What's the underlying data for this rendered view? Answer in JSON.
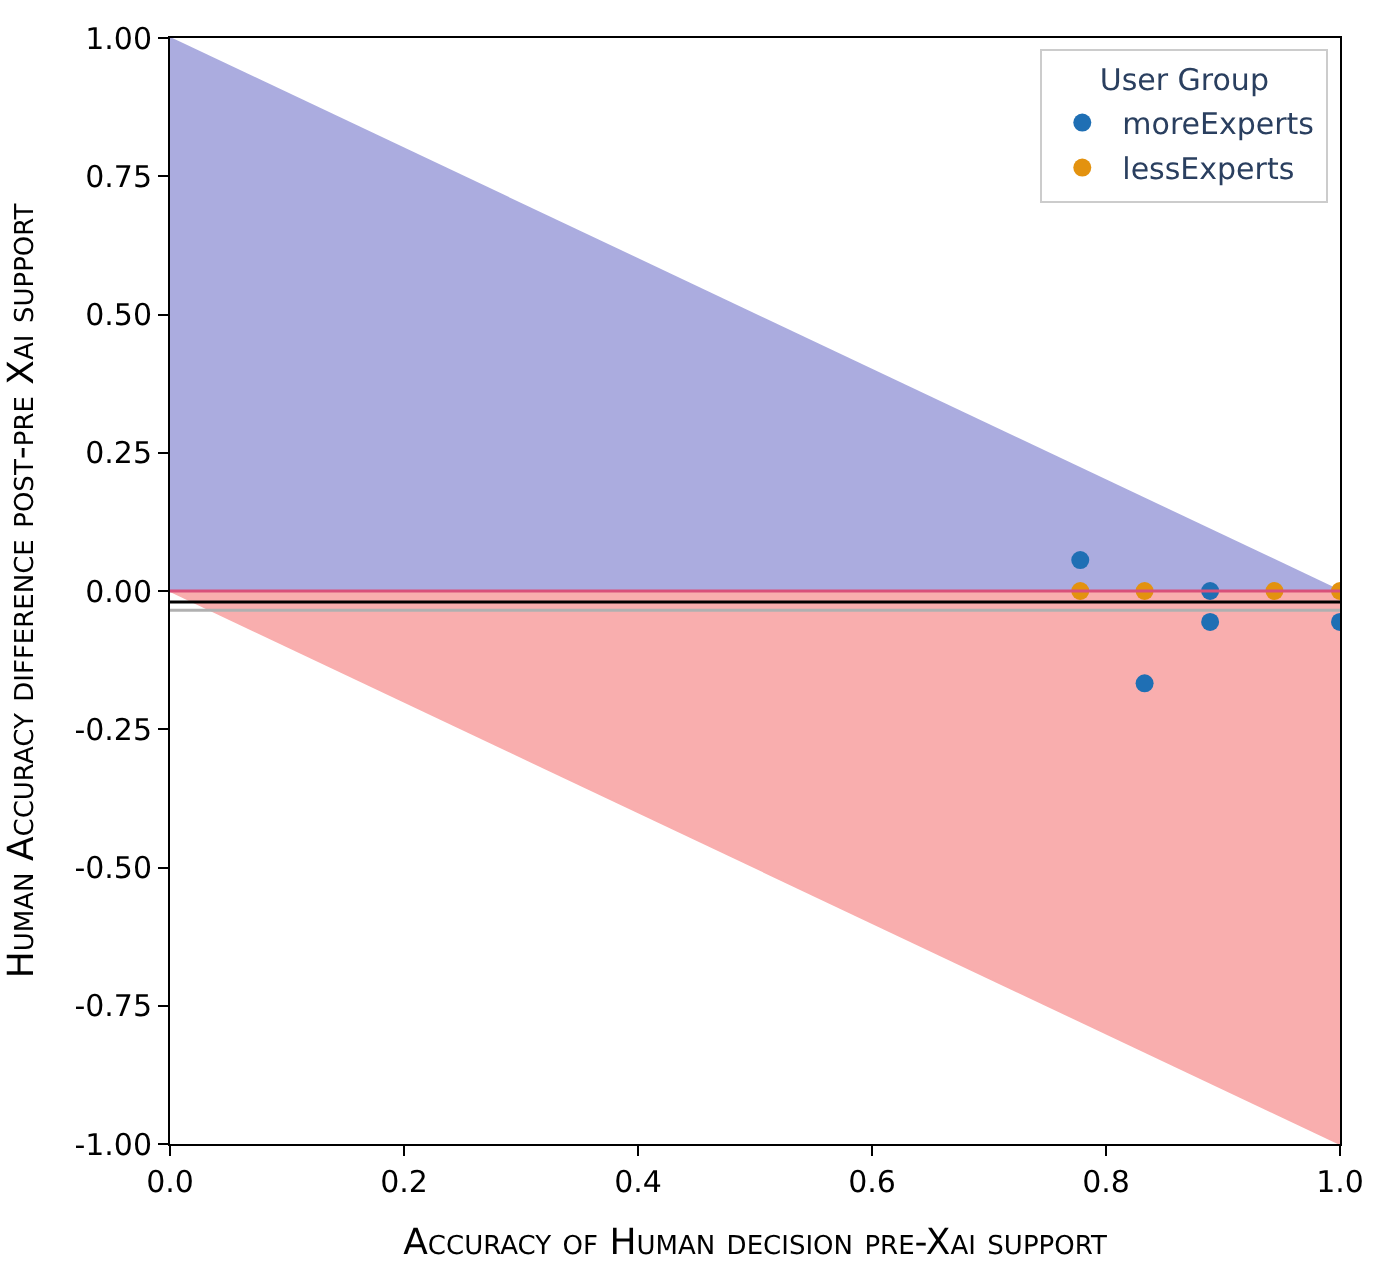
{
  "chart_data": {
    "type": "scatter",
    "xlabel": "Accuracy of Human decision pre-Xai support",
    "ylabel": "Human Accuracy difference post-pre Xai support",
    "legend_title": "User Group",
    "legend": "top right",
    "xlim": [
      0,
      1
    ],
    "ylim": [
      -1,
      1
    ],
    "xticks": [
      {
        "value": 0,
        "label": "0.0"
      },
      {
        "value": 0.2,
        "label": "0.2"
      },
      {
        "value": 0.4,
        "label": "0.4"
      },
      {
        "value": 0.6,
        "label": "0.6"
      },
      {
        "value": 0.8,
        "label": "0.8"
      },
      {
        "value": 1,
        "label": "1.0"
      }
    ],
    "yticks": [
      {
        "value": -1,
        "label": "-1.00"
      },
      {
        "value": -0.75,
        "label": "-0.75"
      },
      {
        "value": -0.5,
        "label": "-0.50"
      },
      {
        "value": -0.25,
        "label": "-0.25"
      },
      {
        "value": 0,
        "label": "0.00"
      },
      {
        "value": 0.25,
        "label": "0.25"
      },
      {
        "value": 0.5,
        "label": "0.50"
      },
      {
        "value": 0.75,
        "label": "0.75"
      },
      {
        "value": 1,
        "label": "1.00"
      }
    ],
    "series": [
      {
        "type": "area",
        "color": "#abacdf",
        "x": [
          0,
          1
        ],
        "values": [
          1,
          0
        ]
      },
      {
        "type": "area",
        "color": "#f9aeae",
        "x": [
          0,
          1
        ],
        "values": [
          0,
          -1
        ]
      },
      {
        "name": "moreExperts",
        "marker": "circle",
        "color": "#1f6fb4",
        "x": [
          0.778,
          0.833,
          0.889,
          0.889,
          1.0
        ],
        "values": [
          0.056,
          -0.167,
          0,
          -0.056,
          -0.056
        ]
      },
      {
        "name": "lessExperts",
        "marker": "circle",
        "color": "#e3920f",
        "x": [
          0.778,
          0.833,
          0.944,
          1.0
        ],
        "values": [
          0,
          0,
          0,
          0
        ]
      }
    ],
    "ref_lines": [
      {
        "axis": "y",
        "value": 0,
        "color": "#d9507a"
      },
      {
        "axis": "y",
        "value": -0.02,
        "color": "#000000"
      },
      {
        "axis": "y",
        "value": -0.035,
        "color": "#b0b0b0"
      }
    ]
  }
}
